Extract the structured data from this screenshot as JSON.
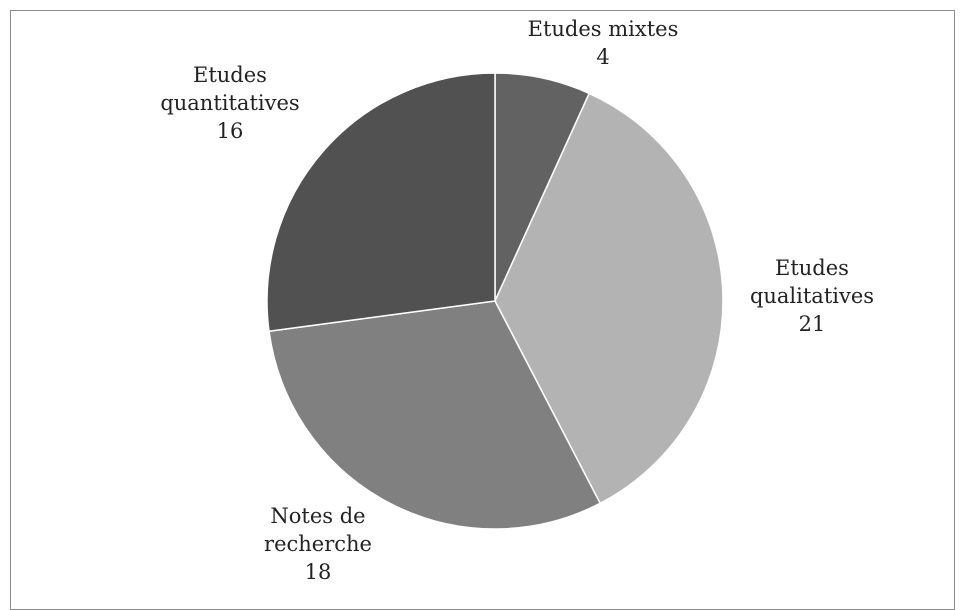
{
  "chart_data": {
    "type": "pie",
    "categories": [
      "Etudes mixtes",
      "Etudes qualitatives",
      "Notes de recherche",
      "Etudes quantitatives"
    ],
    "values": [
      4,
      21,
      18,
      16
    ],
    "label_lines": [
      [
        "Etudes mixtes",
        "4"
      ],
      [
        "Etudes",
        "qualitatives",
        "21"
      ],
      [
        "Notes de",
        "recherche",
        "18"
      ],
      [
        "Etudes",
        "quantitatives",
        "16"
      ]
    ],
    "colors": [
      "#626262",
      "#b3b3b3",
      "#808080",
      "#515151"
    ],
    "start_angle_deg": 0,
    "direction": "clockwise",
    "legend": "none",
    "title": ""
  }
}
